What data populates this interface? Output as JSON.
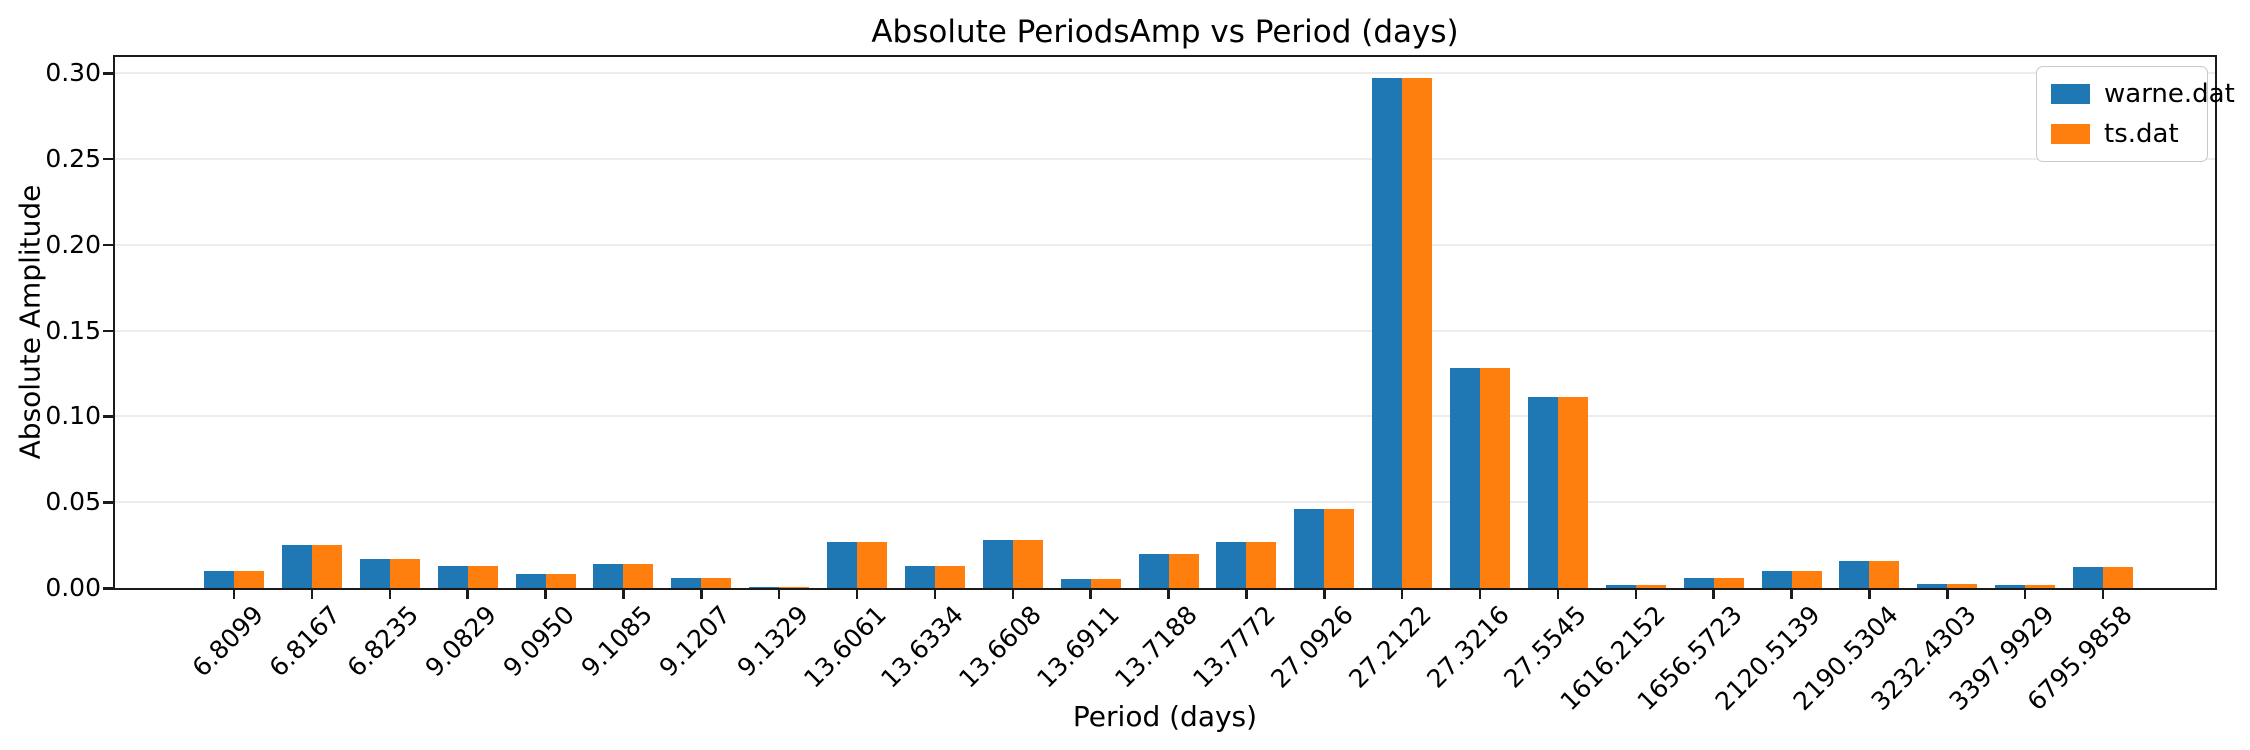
{
  "chart_data": {
    "type": "bar",
    "title": "Absolute PeriodsAmp vs Period (days)",
    "xlabel": "Period (days)",
    "ylabel": "Absolute Amplitude",
    "categories": [
      "6.8099",
      "6.8167",
      "6.8235",
      "9.0829",
      "9.0950",
      "9.1085",
      "9.1207",
      "9.1329",
      "13.6061",
      "13.6334",
      "13.6608",
      "13.6911",
      "13.7188",
      "13.7772",
      "27.0926",
      "27.2122",
      "27.3216",
      "27.5545",
      "1616.2152",
      "1656.5723",
      "2120.5139",
      "2190.5304",
      "3232.4303",
      "3397.9929",
      "6795.9858"
    ],
    "series": [
      {
        "name": "warne.dat",
        "color": "#1f77b4",
        "values": [
          0.01,
          0.025,
          0.017,
          0.013,
          0.008,
          0.014,
          0.006,
          0.0004,
          0.027,
          0.013,
          0.028,
          0.005,
          0.02,
          0.027,
          0.046,
          0.297,
          0.128,
          0.111,
          0.002,
          0.006,
          0.01,
          0.016,
          0.0025,
          0.002,
          0.012
        ]
      },
      {
        "name": "ts.dat",
        "color": "#ff7f0e",
        "values": [
          0.01,
          0.025,
          0.017,
          0.013,
          0.008,
          0.014,
          0.006,
          0.0004,
          0.027,
          0.013,
          0.028,
          0.005,
          0.02,
          0.027,
          0.046,
          0.297,
          0.128,
          0.111,
          0.002,
          0.006,
          0.01,
          0.016,
          0.0025,
          0.002,
          0.012
        ]
      }
    ],
    "ylim": [
      0,
      0.309
    ],
    "yticks": [
      0.0,
      0.05,
      0.1,
      0.15,
      0.2,
      0.25,
      0.3
    ],
    "ytick_format": "2dp",
    "grid": "horizontal",
    "gridline_color": "#ececec",
    "legend_position": "upper-right"
  }
}
